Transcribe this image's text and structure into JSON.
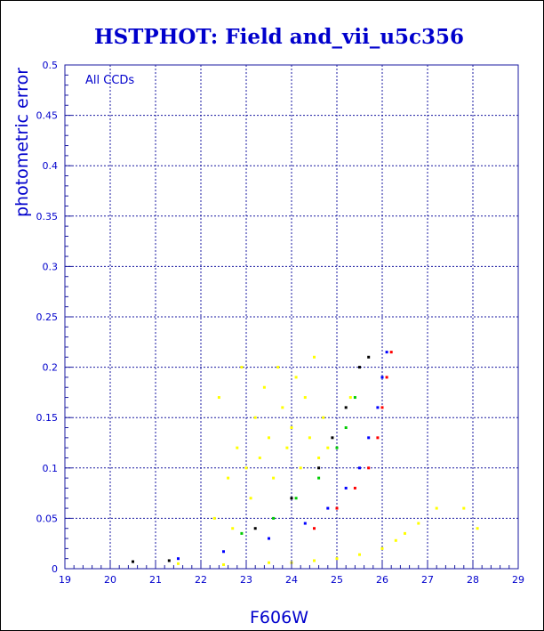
{
  "chart_data": {
    "type": "scatter",
    "title": "HSTPHOT: Field and_vii_u5c356",
    "xlabel": "F606W",
    "ylabel": "photometric error",
    "annotation": "All CCDs",
    "xlim": [
      19,
      29
    ],
    "ylim": [
      0,
      0.5
    ],
    "x_ticks": [
      "19",
      "20",
      "21",
      "22",
      "23",
      "24",
      "25",
      "26",
      "27",
      "28",
      "29"
    ],
    "y_ticks": [
      "0",
      "0.05",
      "0.1",
      "0.15",
      "0.2",
      "0.25",
      "0.3",
      "0.35",
      "0.4",
      "0.45",
      "0.5"
    ],
    "grid": true,
    "series": [
      {
        "color": "#ffff00",
        "points": [
          [
            22.3,
            0.05
          ],
          [
            22.6,
            0.09
          ],
          [
            22.8,
            0.12
          ],
          [
            22.9,
            0.2
          ],
          [
            23.1,
            0.07
          ],
          [
            23.2,
            0.15
          ],
          [
            23.3,
            0.11
          ],
          [
            23.4,
            0.18
          ],
          [
            23.5,
            0.13
          ],
          [
            23.6,
            0.09
          ],
          [
            23.7,
            0.2
          ],
          [
            23.8,
            0.16
          ],
          [
            23.9,
            0.12
          ],
          [
            24.0,
            0.14
          ],
          [
            24.1,
            0.19
          ],
          [
            24.2,
            0.1
          ],
          [
            24.3,
            0.17
          ],
          [
            24.4,
            0.13
          ],
          [
            24.5,
            0.21
          ],
          [
            24.6,
            0.11
          ],
          [
            24.7,
            0.15
          ],
          [
            24.8,
            0.12
          ],
          [
            22.4,
            0.17
          ],
          [
            22.7,
            0.04
          ],
          [
            23.0,
            0.1
          ],
          [
            21.5,
            0.005
          ],
          [
            22.5,
            0.004
          ],
          [
            23.5,
            0.006
          ],
          [
            24.0,
            0.006
          ],
          [
            24.5,
            0.008
          ],
          [
            25.0,
            0.01
          ],
          [
            25.5,
            0.014
          ],
          [
            26.0,
            0.02
          ],
          [
            26.3,
            0.028
          ],
          [
            26.5,
            0.035
          ],
          [
            26.8,
            0.045
          ],
          [
            27.2,
            0.06
          ],
          [
            27.8,
            0.06
          ],
          [
            28.1,
            0.04
          ],
          [
            25.3,
            0.17
          ]
        ]
      },
      {
        "color": "#ff0000",
        "points": [
          [
            24.5,
            0.04
          ],
          [
            25.0,
            0.06
          ],
          [
            25.4,
            0.08
          ],
          [
            25.7,
            0.1
          ],
          [
            25.9,
            0.13
          ],
          [
            26.0,
            0.16
          ],
          [
            26.1,
            0.19
          ],
          [
            26.2,
            0.215
          ]
        ]
      },
      {
        "color": "#0000ff",
        "points": [
          [
            21.5,
            0.01
          ],
          [
            22.5,
            0.017
          ],
          [
            23.5,
            0.03
          ],
          [
            24.3,
            0.045
          ],
          [
            24.8,
            0.06
          ],
          [
            25.2,
            0.08
          ],
          [
            25.5,
            0.1
          ],
          [
            25.7,
            0.13
          ],
          [
            25.9,
            0.16
          ],
          [
            26.0,
            0.19
          ],
          [
            26.1,
            0.215
          ]
        ]
      },
      {
        "color": "#00cc00",
        "points": [
          [
            22.9,
            0.035
          ],
          [
            23.6,
            0.05
          ],
          [
            24.1,
            0.07
          ],
          [
            24.6,
            0.09
          ],
          [
            25.0,
            0.12
          ],
          [
            25.2,
            0.14
          ],
          [
            25.4,
            0.17
          ]
        ]
      },
      {
        "color": "#000000",
        "points": [
          [
            20.5,
            0.007
          ],
          [
            21.3,
            0.008
          ],
          [
            23.2,
            0.04
          ],
          [
            24.0,
            0.07
          ],
          [
            24.6,
            0.1
          ],
          [
            24.9,
            0.13
          ],
          [
            25.2,
            0.16
          ],
          [
            25.5,
            0.2
          ],
          [
            25.7,
            0.21
          ]
        ]
      }
    ]
  }
}
